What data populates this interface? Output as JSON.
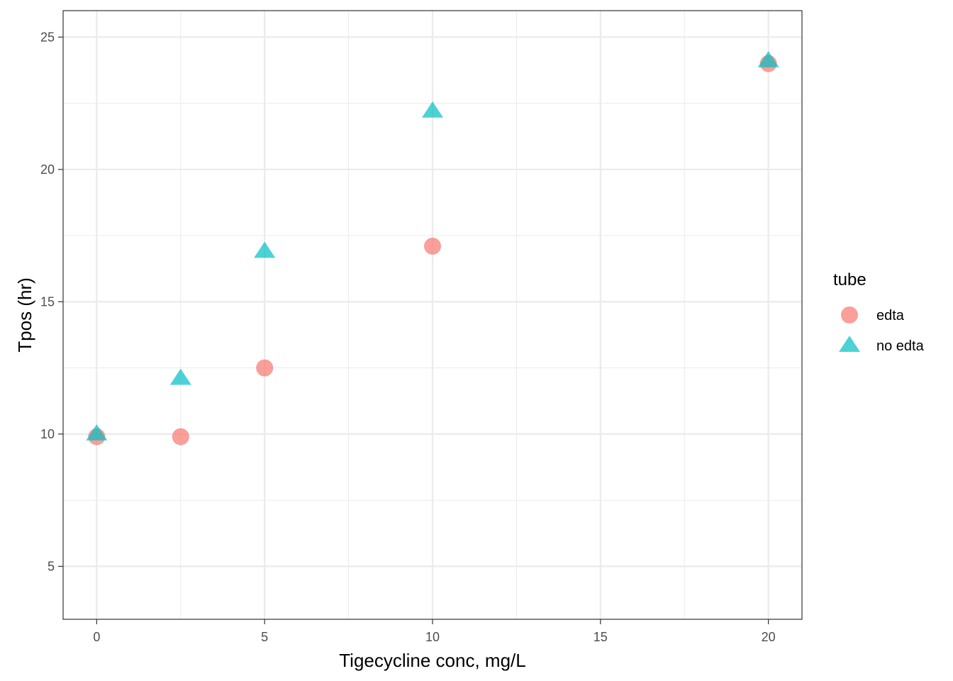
{
  "chart_data": {
    "type": "scatter",
    "title": "",
    "xlabel": "Tigecycline conc, mg/L",
    "ylabel": "Tpos (hr)",
    "xlim": [
      -1,
      21
    ],
    "ylim": [
      3,
      26
    ],
    "x_ticks": [
      0,
      5,
      10,
      15,
      20
    ],
    "y_ticks": [
      5,
      10,
      15,
      20,
      25
    ],
    "x_minor": [
      2.5,
      7.5,
      12.5,
      17.5
    ],
    "y_minor": [
      7.5,
      12.5,
      17.5,
      22.5
    ],
    "grid": true,
    "legend": {
      "title": "tube",
      "position": "right"
    },
    "series": [
      {
        "name": "edta",
        "shape": "circle",
        "color": "#F8766D",
        "points": [
          {
            "x": 0,
            "y": 9.9
          },
          {
            "x": 2.5,
            "y": 9.9
          },
          {
            "x": 5,
            "y": 12.5
          },
          {
            "x": 10,
            "y": 17.1
          },
          {
            "x": 20,
            "y": 24
          }
        ]
      },
      {
        "name": "no edta",
        "shape": "triangle",
        "color": "#00BFC4",
        "points": [
          {
            "x": 0,
            "y": 10
          },
          {
            "x": 2.5,
            "y": 12.1
          },
          {
            "x": 5,
            "y": 16.9
          },
          {
            "x": 10,
            "y": 22.2
          },
          {
            "x": 20,
            "y": 24.1
          }
        ]
      }
    ]
  }
}
